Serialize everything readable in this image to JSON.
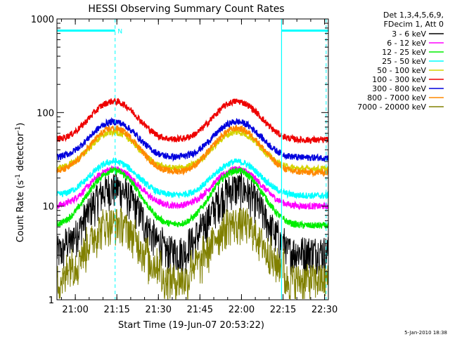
{
  "chart_data": {
    "type": "line",
    "title": "HESSI Observing Summary Count Rates",
    "xlabel": "Start Time (19-Jun-07 20:53:22)",
    "ylabel_main": "Count Rate (s",
    "ylabel_sup1": "-1",
    "ylabel_mid": " detector",
    "ylabel_sup2": "-1",
    "ylabel_end": ")",
    "y_scale": "log",
    "ylim": [
      1,
      1000
    ],
    "xlim_minutes": [
      0,
      98
    ],
    "x_ticks": [
      {
        "m": 6.63,
        "label": "21:00"
      },
      {
        "m": 21.63,
        "label": "21:15"
      },
      {
        "m": 36.63,
        "label": "21:30"
      },
      {
        "m": 51.63,
        "label": "21:45"
      },
      {
        "m": 66.63,
        "label": "22:00"
      },
      {
        "m": 81.63,
        "label": "22:15"
      },
      {
        "m": 96.63,
        "label": "22:30"
      }
    ],
    "y_ticks": [
      {
        "v": 1,
        "label": "1"
      },
      {
        "v": 10,
        "label": "10"
      },
      {
        "v": 100,
        "label": "100"
      },
      {
        "v": 1000,
        "label": "1000"
      }
    ],
    "legend_header": [
      "Det 1,3,4,5,6,9,",
      "FDecim 1, Att 0"
    ],
    "legend_position": "outside-right",
    "series": [
      {
        "name": "3 - 6 keV",
        "color": "#000000",
        "base": 3.2,
        "peak": 16
      },
      {
        "name": "6 - 12 keV",
        "color": "#ff00ff",
        "base": 10,
        "peak": 25
      },
      {
        "name": "12 - 25 keV",
        "color": "#00ee00",
        "base": 6.2,
        "peak": 24
      },
      {
        "name": "25 - 50 keV",
        "color": "#00ffff",
        "base": 13,
        "peak": 30
      },
      {
        "name": "50 - 100 keV",
        "color": "#d4d400",
        "base": 25,
        "peak": 62
      },
      {
        "name": "100 - 300 keV",
        "color": "#ee0000",
        "base": 51,
        "peak": 132
      },
      {
        "name": "300 - 800 keV",
        "color": "#0000dd",
        "base": 33,
        "peak": 80
      },
      {
        "name": "800 - 7000 keV",
        "color": "#ff8800",
        "base": 23,
        "peak": 68
      },
      {
        "name": "7000 - 20000 keV",
        "color": "#808000",
        "base": 1.8,
        "peak": 7
      }
    ],
    "flag_bars": [
      {
        "from": 0,
        "to": 21,
        "value": 750,
        "label": "N"
      },
      {
        "from": 81.1,
        "to": 98,
        "value": 750,
        "label": ""
      }
    ],
    "vlines_dashed": [
      21,
      97.2
    ],
    "vlines_solid": [
      81.1
    ],
    "accent_color": "#00ffff"
  },
  "footer": {
    "timestamp": "5-Jan-2010 18:38"
  }
}
